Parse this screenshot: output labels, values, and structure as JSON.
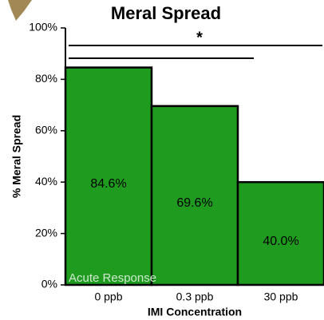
{
  "chart_data": {
    "type": "bar",
    "title": "Meral Spread",
    "x_label": "IMI Concentration",
    "y_label": "% Meral Spread",
    "categories": [
      "0 ppb",
      "0.3 ppb",
      "30 ppb"
    ],
    "values": [
      84.6,
      69.6,
      40.0
    ],
    "value_labels": [
      "84.6%",
      "69.6%",
      "40.0%"
    ],
    "color": "#1f9c1f",
    "ylim": [
      0,
      100
    ],
    "yticks": [
      {
        "value": 0,
        "label": "0%"
      },
      {
        "value": 20,
        "label": "20%"
      },
      {
        "value": 40,
        "label": "40%"
      },
      {
        "value": 60,
        "label": "60%"
      },
      {
        "value": 80,
        "label": "80%"
      },
      {
        "value": 100,
        "label": "100%"
      }
    ],
    "annotations": [
      "*",
      "Acute Response"
    ]
  }
}
